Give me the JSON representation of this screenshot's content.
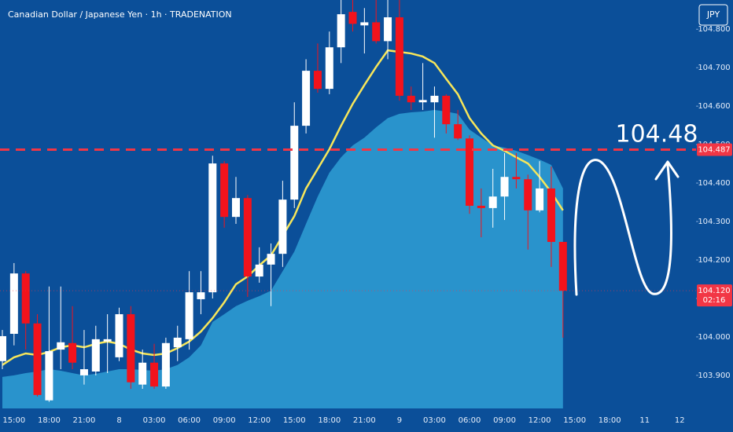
{
  "chart_data": {
    "type": "candlestick",
    "title": "Canadian Dollar / Japanese Yen · 1h · TRADENATION",
    "currency": "JPY",
    "annotation": "104.48",
    "categories": [
      null,
      "15:00",
      null,
      null,
      "18:00",
      null,
      null,
      "21:00",
      null,
      null,
      "8",
      null,
      null,
      "03:00",
      null,
      null,
      "06:00",
      null,
      null,
      "09:00",
      null,
      null,
      "12:00",
      null,
      null,
      "15:00",
      null,
      null,
      "18:00",
      null,
      null,
      "21:00",
      null,
      null,
      "9",
      null,
      null,
      "03:00",
      null,
      null,
      "06:00",
      null,
      null,
      "09:00",
      null,
      null,
      "12:00",
      null,
      null,
      "15:00",
      null,
      null,
      "18:00",
      null,
      null,
      "11",
      null,
      null,
      "12"
    ],
    "open": [
      103.937,
      104.008,
      104.165,
      104.035,
      103.835,
      103.967,
      103.984,
      103.9,
      103.91,
      103.988,
      103.947,
      104.059,
      103.876,
      103.933,
      103.871,
      103.973,
      103.994,
      104.098,
      104.116,
      104.451,
      104.312,
      104.361,
      104.157,
      104.188,
      104.216,
      104.357,
      104.549,
      104.692,
      104.645,
      104.753,
      104.845,
      104.81,
      104.818,
      104.769,
      104.831,
      104.627,
      104.61,
      104.61,
      104.627,
      104.553,
      104.516,
      104.341,
      104.335,
      104.365,
      104.416,
      104.41,
      104.329,
      104.386,
      104.247,
      null,
      null,
      null,
      null,
      null,
      null,
      null,
      null,
      null,
      null
    ],
    "high": [
      104.018,
      104.192,
      104.171,
      104.059,
      104.131,
      104.131,
      104.08,
      104.018,
      104.029,
      104.059,
      104.076,
      104.08,
      103.967,
      103.982,
      103.998,
      104.029,
      104.171,
      104.171,
      104.471,
      104.457,
      104.416,
      104.369,
      104.233,
      104.243,
      104.406,
      104.61,
      104.722,
      104.763,
      104.794,
      104.876,
      104.876,
      104.855,
      104.876,
      104.876,
      104.876,
      104.651,
      104.712,
      104.651,
      104.631,
      104.59,
      104.524,
      104.386,
      104.437,
      104.478,
      104.478,
      104.422,
      104.457,
      104.443,
      104.247,
      null,
      null,
      null,
      null,
      null,
      null,
      null,
      null,
      null,
      null
    ],
    "low": [
      103.916,
      103.978,
      103.967,
      103.845,
      103.831,
      103.916,
      103.916,
      103.876,
      103.9,
      103.906,
      103.937,
      103.865,
      103.865,
      103.865,
      103.865,
      103.937,
      103.967,
      104.059,
      104.1,
      104.284,
      104.294,
      104.104,
      104.141,
      104.08,
      104.182,
      104.335,
      104.529,
      104.635,
      104.631,
      104.712,
      104.794,
      104.737,
      104.763,
      104.722,
      104.614,
      104.59,
      104.59,
      104.518,
      104.529,
      104.512,
      104.32,
      104.259,
      104.284,
      104.304,
      104.386,
      104.227,
      104.324,
      104.182,
      103.998,
      null,
      null,
      null,
      null,
      null,
      null,
      null,
      null,
      null,
      null
    ],
    "close": [
      104.002,
      104.165,
      104.035,
      103.849,
      103.963,
      103.986,
      103.933,
      103.916,
      103.994,
      103.994,
      104.059,
      103.882,
      103.933,
      103.871,
      103.984,
      103.998,
      104.116,
      104.116,
      104.451,
      104.312,
      104.361,
      104.157,
      104.188,
      104.216,
      104.357,
      104.549,
      104.692,
      104.645,
      104.753,
      104.839,
      104.814,
      104.818,
      104.769,
      104.831,
      104.627,
      104.61,
      104.616,
      104.627,
      104.553,
      104.516,
      104.341,
      104.335,
      104.365,
      104.416,
      104.41,
      104.329,
      104.386,
      104.247,
      104.12,
      null,
      null,
      null,
      null,
      null,
      null,
      null,
      null,
      null,
      null
    ],
    "bullish_color": "#ffffff",
    "bearish_color": "#f2131c",
    "overlays": [
      {
        "style": "area",
        "color": "#2c9ad2",
        "values": [
          103.896,
          103.9,
          103.906,
          103.91,
          103.916,
          103.912,
          103.906,
          103.9,
          103.904,
          103.91,
          103.916,
          103.916,
          103.914,
          103.912,
          103.916,
          103.927,
          103.947,
          103.978,
          104.039,
          104.059,
          104.08,
          104.094,
          104.106,
          104.12,
          104.171,
          104.222,
          104.294,
          104.365,
          104.427,
          104.467,
          104.498,
          104.518,
          104.545,
          104.569,
          104.58,
          104.584,
          104.586,
          104.59,
          104.586,
          104.58,
          104.539,
          104.518,
          104.498,
          104.492,
          104.484,
          104.473,
          104.461,
          104.447,
          104.386,
          null,
          null,
          null,
          null,
          null,
          null,
          null,
          null,
          null,
          null
        ]
      },
      {
        "style": "line",
        "color": "#f7e65a",
        "values": [
          103.927,
          103.947,
          103.957,
          103.953,
          103.961,
          103.973,
          103.978,
          103.973,
          103.982,
          103.988,
          103.982,
          103.967,
          103.957,
          103.953,
          103.957,
          103.971,
          103.988,
          104.014,
          104.049,
          104.09,
          104.137,
          104.157,
          104.186,
          104.212,
          104.263,
          104.314,
          104.386,
          104.437,
          104.488,
          104.549,
          104.606,
          104.655,
          104.702,
          104.745,
          104.741,
          104.737,
          104.729,
          104.712,
          104.671,
          104.631,
          104.569,
          104.529,
          104.498,
          104.484,
          104.467,
          104.451,
          104.416,
          104.376,
          104.329,
          null,
          null,
          null,
          null,
          null,
          null,
          null,
          null,
          null,
          null
        ]
      }
    ],
    "price_lines": [
      {
        "value": 104.487,
        "label": "104.487",
        "color": "#f23645",
        "style": "dashed"
      },
      {
        "value": 104.12,
        "label": "104.120",
        "countdown": "02:16",
        "color": "#f23645",
        "style": "dotted"
      }
    ],
    "ylim": [
      103.814,
      104.876
    ],
    "yticks": [
      {
        "value": 103.9,
        "label": "103.900"
      },
      {
        "value": 104.0,
        "label": "104.000"
      },
      {
        "value": 104.1,
        "label": "104.100"
      },
      {
        "value": 104.2,
        "label": "104.200"
      },
      {
        "value": 104.3,
        "label": "104.300"
      },
      {
        "value": 104.4,
        "label": "104.400"
      },
      {
        "value": 104.5,
        "label": "104.500"
      },
      {
        "value": 104.6,
        "label": "104.600"
      },
      {
        "value": 104.7,
        "label": "104.700"
      },
      {
        "value": 104.8,
        "label": "104.800"
      }
    ]
  }
}
